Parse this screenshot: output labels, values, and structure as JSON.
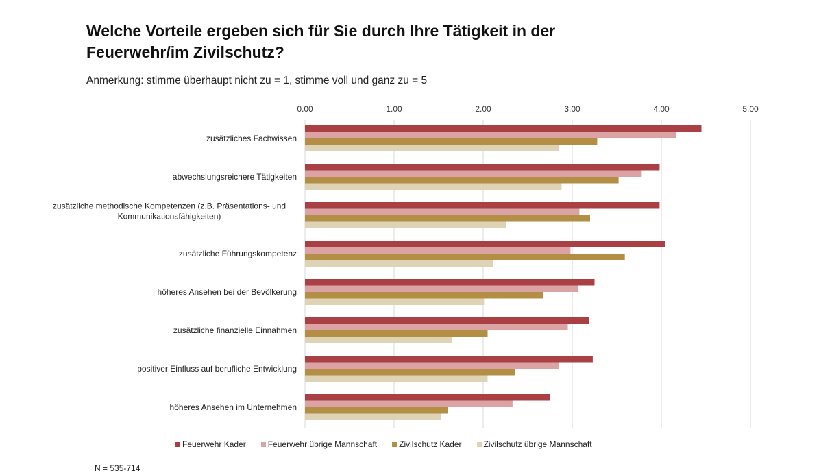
{
  "chart_data": {
    "type": "bar",
    "orientation": "horizontal",
    "title": "Welche Vorteile ergeben sich für Sie durch Ihre Tätigkeit in der Feuerwehr/im Zivilschutz?",
    "title_lines": [
      "Welche Vorteile ergeben sich für Sie durch Ihre Tätigkeit in der",
      "Feuerwehr/im Zivilschutz?"
    ],
    "subtitle": "Anmerkung: stimme überhaupt nicht zu = 1, stimme voll und ganz zu = 5",
    "xlabel": "",
    "ylabel": "",
    "xlim": [
      0,
      5
    ],
    "xticks": [
      "0.00",
      "1.00",
      "2.00",
      "3.00",
      "4.00",
      "5.00"
    ],
    "grid": true,
    "legend_position": "bottom",
    "categories": [
      [
        "zusätzliches Fachwissen"
      ],
      [
        "abwechslungsreichere Tätigkeiten"
      ],
      [
        "zusätzliche methodische Kompetenzen (z.B. Präsentations- und",
        "Kommunikationsfähigkeiten)"
      ],
      [
        "zusätzliche Führungskompetenz"
      ],
      [
        "höheres Ansehen bei der Bevölkerung"
      ],
      [
        "zusätzliche finanzielle Einnahmen"
      ],
      [
        "positiver Einfluss auf berufliche Entwicklung"
      ],
      [
        "höheres Ansehen im Unternehmen"
      ]
    ],
    "series": [
      {
        "name": "Feuerwehr Kader",
        "color": "#A84044",
        "values": [
          4.45,
          3.98,
          3.98,
          4.04,
          3.25,
          3.19,
          3.23,
          2.75
        ]
      },
      {
        "name": "Feuerwehr übrige Mannschaft",
        "color": "#DBA3A4",
        "values": [
          4.17,
          3.78,
          3.08,
          2.98,
          3.07,
          2.95,
          2.85,
          2.33
        ]
      },
      {
        "name": "Zivilschutz Kader",
        "color": "#B38F45",
        "values": [
          3.28,
          3.52,
          3.2,
          3.59,
          2.67,
          2.05,
          2.36,
          1.6
        ]
      },
      {
        "name": "Zivilschutz übrige Mannschaft",
        "color": "#DED3B5",
        "values": [
          2.85,
          2.88,
          2.26,
          2.11,
          2.01,
          1.65,
          2.05,
          1.53
        ]
      }
    ],
    "footnote": "N = 535-714"
  }
}
